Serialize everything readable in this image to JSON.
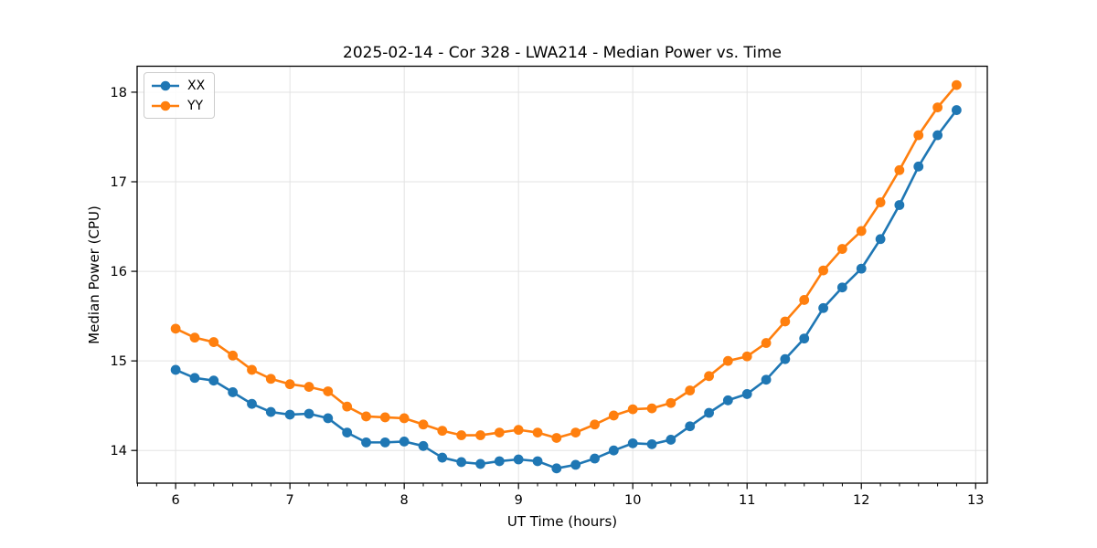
{
  "figure": {
    "title": "2025-02-14 - Cor 328 - LWA214 - Median Power vs. Time",
    "xlabel": "UT Time (hours)",
    "ylabel": "Median Power (CPU)"
  },
  "chart_data": {
    "type": "line",
    "title": "2025-02-14 - Cor 328 - LWA214 - Median Power vs. Time",
    "xlabel": "UT Time (hours)",
    "ylabel": "Median Power (CPU)",
    "x": [
      6.0,
      6.167,
      6.333,
      6.5,
      6.667,
      6.833,
      7.0,
      7.167,
      7.333,
      7.5,
      7.667,
      7.833,
      8.0,
      8.167,
      8.333,
      8.5,
      8.667,
      8.833,
      9.0,
      9.167,
      9.333,
      9.5,
      9.667,
      9.833,
      10.0,
      10.167,
      10.333,
      10.5,
      10.667,
      10.833,
      11.0,
      11.167,
      11.333,
      11.5,
      11.667,
      11.833,
      12.0,
      12.167,
      12.333,
      12.5,
      12.667,
      12.833
    ],
    "series": [
      {
        "name": "XX",
        "color": "#1f77b4",
        "marker": "circle",
        "values": [
          14.9,
          14.81,
          14.78,
          14.65,
          14.52,
          14.43,
          14.4,
          14.41,
          14.36,
          14.2,
          14.09,
          14.09,
          14.1,
          14.05,
          13.92,
          13.87,
          13.85,
          13.88,
          13.9,
          13.88,
          13.8,
          13.84,
          13.91,
          14.0,
          14.08,
          14.07,
          14.12,
          14.27,
          14.42,
          14.56,
          14.63,
          14.79,
          15.02,
          15.25,
          15.59,
          15.82,
          16.03,
          16.36,
          16.74,
          17.17,
          17.52,
          17.8
        ]
      },
      {
        "name": "YY",
        "color": "#ff7f0e",
        "marker": "circle",
        "values": [
          15.36,
          15.26,
          15.21,
          15.06,
          14.9,
          14.8,
          14.74,
          14.71,
          14.66,
          14.49,
          14.38,
          14.37,
          14.36,
          14.29,
          14.22,
          14.17,
          14.17,
          14.2,
          14.23,
          14.2,
          14.14,
          14.2,
          14.29,
          14.39,
          14.46,
          14.47,
          14.53,
          14.67,
          14.83,
          15.0,
          15.05,
          15.2,
          15.44,
          15.68,
          16.01,
          16.25,
          16.45,
          16.77,
          17.13,
          17.52,
          17.83,
          18.08
        ]
      }
    ],
    "xlim": [
      5.663,
      13.102
    ],
    "ylim": [
      13.635,
      18.29
    ],
    "xticks": [
      6,
      7,
      8,
      9,
      10,
      11,
      12,
      13
    ],
    "yticks": [
      14,
      15,
      16,
      17,
      18
    ],
    "x_minor_step": 0.16667,
    "grid": true,
    "grid_color": "#e3e3e3",
    "spine_color": "#000000",
    "legend_position": "upper-left",
    "legend_labels": [
      "XX",
      "YY"
    ],
    "background": "#ffffff"
  }
}
